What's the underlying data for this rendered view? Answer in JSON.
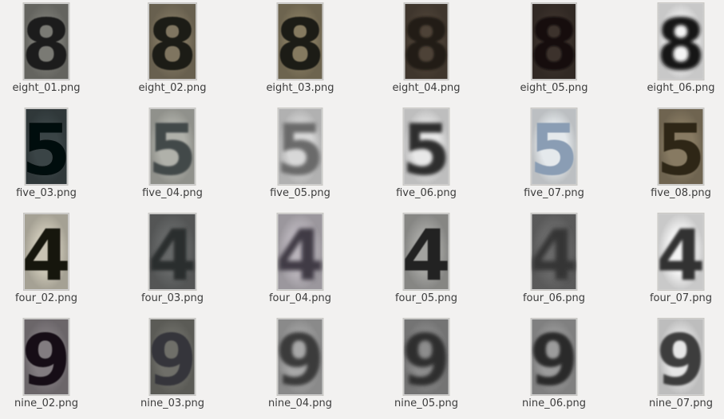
{
  "files": [
    {
      "name": "eight_01.png",
      "digit": "8",
      "bg": "#7a7a74",
      "fg": "#1e1e1e",
      "blur": 0.6
    },
    {
      "name": "eight_02.png",
      "digit": "8",
      "bg": "#7f7560",
      "fg": "#1f1e15",
      "blur": 0.4
    },
    {
      "name": "eight_03.png",
      "digit": "8",
      "bg": "#857a60",
      "fg": "#1c1b14",
      "blur": 0.5
    },
    {
      "name": "eight_04.png",
      "digit": "8",
      "bg": "#4d4237",
      "fg": "#201a16",
      "blur": 1.4
    },
    {
      "name": "eight_05.png",
      "digit": "8",
      "bg": "#3c322c",
      "fg": "#120e0d",
      "blur": 1.0
    },
    {
      "name": "eight_06.png",
      "digit": "8",
      "bg": "#f4f4f4",
      "fg": "#151515",
      "blur": 2.0
    },
    {
      "name": "five_03.png",
      "digit": "5",
      "bg": "#3a4446",
      "fg": "#060808",
      "blur": 0.3
    },
    {
      "name": "five_04.png",
      "digit": "5",
      "bg": "#b0b1aa",
      "fg": "#43484a",
      "blur": 1.0
    },
    {
      "name": "five_05.png",
      "digit": "5",
      "bg": "#d8d8d8",
      "fg": "#6a6a6a",
      "blur": 2.4
    },
    {
      "name": "five_06.png",
      "digit": "5",
      "bg": "#e8e8e8",
      "fg": "#2e2e2e",
      "blur": 2.0
    },
    {
      "name": "five_07.png",
      "digit": "5",
      "bg": "#e5e9ec",
      "fg": "#8a9db4",
      "blur": 0.4
    },
    {
      "name": "five_08.png",
      "digit": "5",
      "bg": "#877a62",
      "fg": "#2d2618",
      "blur": 0.5
    },
    {
      "name": "four_02.png",
      "digit": "4",
      "bg": "#c9c4b4",
      "fg": "#17150f",
      "blur": 0.4
    },
    {
      "name": "four_03.png",
      "digit": "4",
      "bg": "#666868",
      "fg": "#2c2e2f",
      "blur": 1.8
    },
    {
      "name": "four_04.png",
      "digit": "4",
      "bg": "#bdb8bf",
      "fg": "#3f3a44",
      "blur": 2.6
    },
    {
      "name": "four_05.png",
      "digit": "4",
      "bg": "#a3a3a0",
      "fg": "#232323",
      "blur": 0.6
    },
    {
      "name": "four_06.png",
      "digit": "4",
      "bg": "#6d6d6d",
      "fg": "#343434",
      "blur": 3.0
    },
    {
      "name": "four_07.png",
      "digit": "4",
      "bg": "#f5f5f5",
      "fg": "#303030",
      "blur": 1.6
    },
    {
      "name": "nine_02.png",
      "digit": "9",
      "bg": "#827c80",
      "fg": "#140f15",
      "blur": 0.5
    },
    {
      "name": "nine_03.png",
      "digit": "9",
      "bg": "#6f6f69",
      "fg": "#34353a",
      "blur": 0.8
    },
    {
      "name": "nine_04.png",
      "digit": "9",
      "bg": "#a8a8a8",
      "fg": "#3a3a3a",
      "blur": 2.2
    },
    {
      "name": "nine_05.png",
      "digit": "9",
      "bg": "#8d8d8d",
      "fg": "#2e2e2e",
      "blur": 2.4
    },
    {
      "name": "nine_06.png",
      "digit": "9",
      "bg": "#9c9c9c",
      "fg": "#2b2b2b",
      "blur": 1.8
    },
    {
      "name": "nine_07.png",
      "digit": "9",
      "bg": "#e6e6e6",
      "fg": "#3c3c3c",
      "blur": 1.4
    }
  ]
}
